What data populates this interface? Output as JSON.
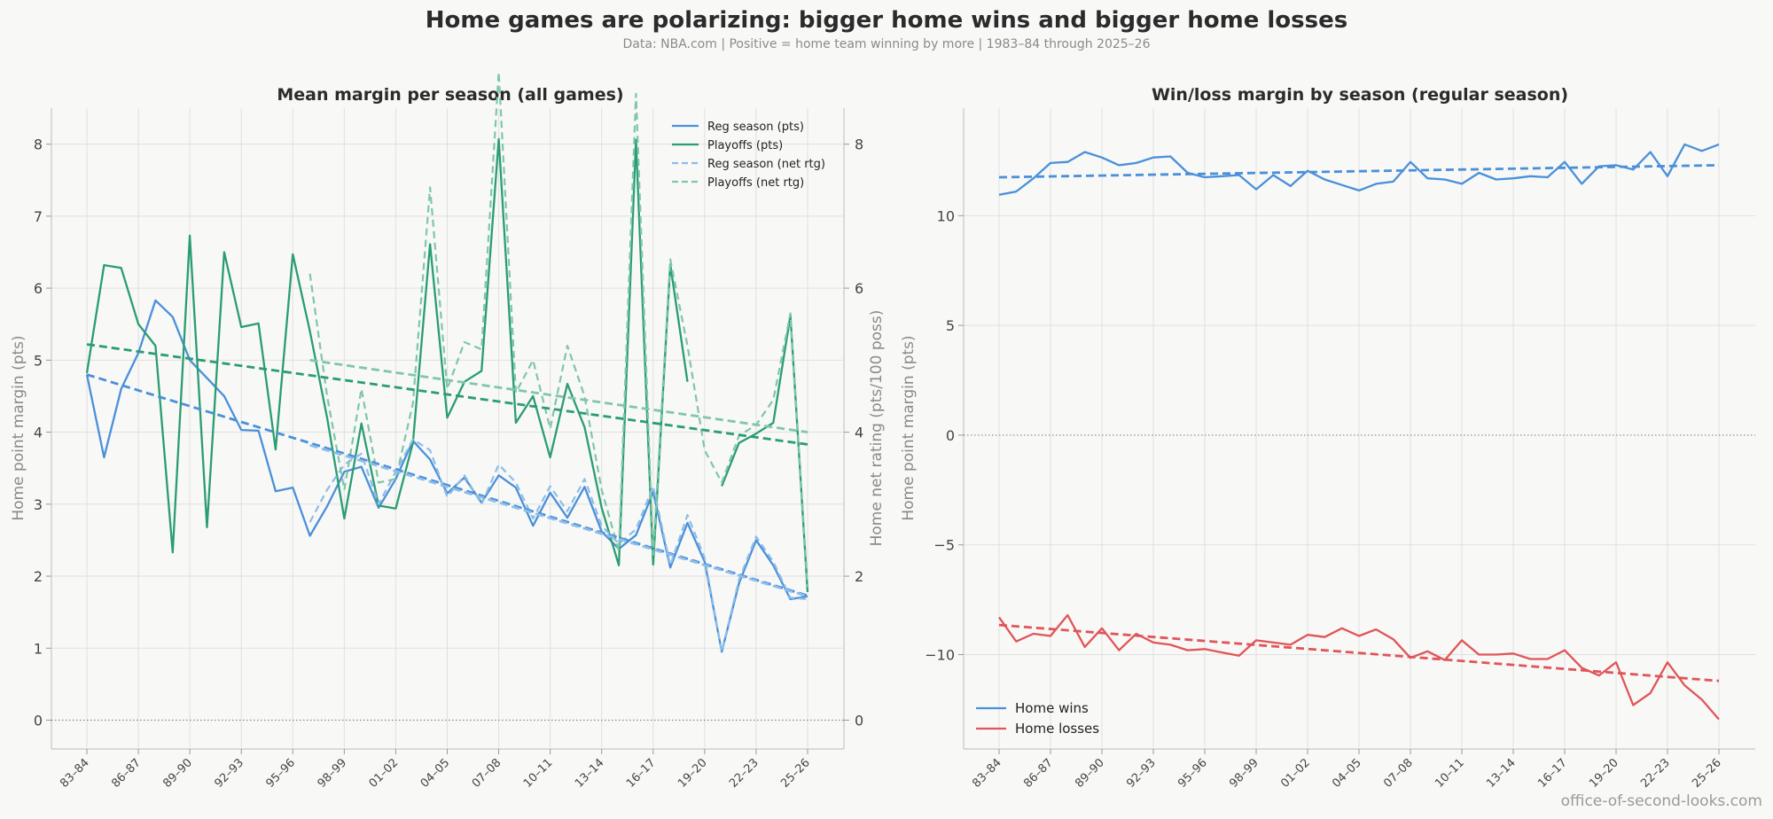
{
  "title": "Home games are polarizing: bigger home wins and bigger home losses",
  "subtitle": "Data: NBA.com  |  Positive = home team winning by more  |  1983–84 through 2025–26",
  "watermark": "office-of-second-looks.com",
  "colors": {
    "reg": "#4a90d9",
    "reg_rtg": "#8dbde8",
    "playoffs": "#2a9d72",
    "playoffs_rtg": "#7fc7a8",
    "wins": "#4a90d9",
    "losses": "#e05558",
    "grid": "#e0e0e0",
    "zero": "#888888"
  },
  "chart_data": [
    {
      "type": "line",
      "title": "Mean margin per season (all games)",
      "ylabel": "Home point margin (pts)",
      "y2label": "Home net rating (pts/100 poss)",
      "ylim": [
        -0.4,
        8.5
      ],
      "y2lim": [
        -0.4,
        8.5
      ],
      "yticks": [
        0,
        1,
        2,
        3,
        4,
        5,
        6,
        7,
        8
      ],
      "y2ticks": [
        0,
        2,
        4,
        6,
        8
      ],
      "xtick_labels": [
        "83–84",
        "86–87",
        "89–90",
        "92–93",
        "95–96",
        "98–99",
        "01–02",
        "04–05",
        "07–08",
        "10–11",
        "13–14",
        "16–17",
        "19–20",
        "22–23",
        "25–26"
      ],
      "seasons": [
        "83–84",
        "84–85",
        "85–86",
        "86–87",
        "87–88",
        "88–89",
        "89–90",
        "90–91",
        "91–92",
        "92–93",
        "93–94",
        "94–95",
        "95–96",
        "96–97",
        "97–98",
        "98–99",
        "99–00",
        "00–01",
        "01–02",
        "02–03",
        "03–04",
        "04–05",
        "05–06",
        "06–07",
        "07–08",
        "08–09",
        "09–10",
        "10–11",
        "11–12",
        "12–13",
        "13–14",
        "14–15",
        "15–16",
        "16–17",
        "17–18",
        "18–19",
        "19–20",
        "20–21",
        "21–22",
        "22–23",
        "23–24",
        "24–25",
        "25–26"
      ],
      "legend": [
        "Reg season (pts)",
        "Playoffs (pts)",
        "Reg season (net rtg)",
        "Playoffs (net rtg)"
      ],
      "legend_position": "top-right",
      "series": [
        {
          "name": "Reg season (pts)",
          "axis": "left",
          "style": "solid",
          "values": [
            4.8,
            3.65,
            4.6,
            5.1,
            5.83,
            5.6,
            5.0,
            4.75,
            4.5,
            4.03,
            4.02,
            3.18,
            3.23,
            2.56,
            2.97,
            3.45,
            3.52,
            2.95,
            3.35,
            3.88,
            3.62,
            3.15,
            3.37,
            3.02,
            3.4,
            3.23,
            2.7,
            3.16,
            2.81,
            3.24,
            2.62,
            2.38,
            2.57,
            3.17,
            2.12,
            2.74,
            2.2,
            0.95,
            1.9,
            2.5,
            2.15,
            1.68,
            1.72
          ]
        },
        {
          "name": "Playoffs (pts)",
          "axis": "left",
          "style": "solid",
          "values": [
            4.82,
            6.32,
            6.28,
            5.5,
            5.2,
            2.33,
            6.73,
            2.68,
            6.5,
            5.46,
            5.51,
            3.76,
            6.47,
            5.4,
            4.2,
            2.8,
            4.12,
            2.98,
            2.94,
            3.85,
            6.61,
            4.2,
            4.7,
            4.85,
            8.07,
            4.13,
            4.5,
            3.65,
            4.67,
            4.07,
            2.95,
            2.15,
            8.06,
            2.16,
            6.33,
            4.7,
            null,
            3.25,
            3.85,
            3.98,
            4.13,
            5.62,
            1.78
          ]
        },
        {
          "name": "Reg season (net rtg)",
          "axis": "right",
          "style": "dashed",
          "values": [
            null,
            null,
            null,
            null,
            null,
            null,
            null,
            null,
            null,
            null,
            null,
            null,
            null,
            2.75,
            3.2,
            3.55,
            3.7,
            3.0,
            3.45,
            3.9,
            3.75,
            3.1,
            3.4,
            3.0,
            3.55,
            3.3,
            2.8,
            3.25,
            2.9,
            3.35,
            2.7,
            2.45,
            2.65,
            3.25,
            2.15,
            2.85,
            2.25,
            0.95,
            1.95,
            2.55,
            2.2,
            1.7,
            1.68
          ]
        },
        {
          "name": "Playoffs (net rtg)",
          "axis": "right",
          "style": "dashed",
          "values": [
            null,
            null,
            null,
            null,
            null,
            null,
            null,
            null,
            null,
            null,
            null,
            null,
            null,
            6.2,
            4.5,
            3.2,
            4.6,
            3.3,
            3.35,
            4.4,
            7.4,
            4.6,
            5.25,
            5.15,
            9.0,
            4.55,
            5.0,
            4.05,
            5.2,
            4.5,
            3.2,
            2.35,
            8.7,
            2.3,
            6.4,
            5.2,
            3.75,
            3.3,
            3.95,
            4.1,
            4.45,
            5.65,
            1.85
          ]
        },
        {
          "name": "Reg season (pts) trend",
          "axis": "left",
          "style": "trend",
          "color_key": "reg",
          "values": [
            4.8,
            null,
            null,
            null,
            null,
            null,
            null,
            null,
            null,
            null,
            null,
            null,
            null,
            null,
            null,
            null,
            null,
            null,
            null,
            null,
            null,
            null,
            null,
            null,
            null,
            null,
            null,
            null,
            null,
            null,
            null,
            null,
            null,
            null,
            null,
            null,
            null,
            null,
            null,
            null,
            null,
            null,
            1.73
          ]
        },
        {
          "name": "Playoffs (pts) trend",
          "axis": "left",
          "style": "trend",
          "color_key": "playoffs",
          "values": [
            5.22,
            null,
            null,
            null,
            null,
            null,
            null,
            null,
            null,
            null,
            null,
            null,
            null,
            null,
            null,
            null,
            null,
            null,
            null,
            null,
            null,
            null,
            null,
            null,
            null,
            null,
            null,
            null,
            null,
            null,
            null,
            null,
            null,
            null,
            null,
            null,
            null,
            null,
            null,
            null,
            null,
            null,
            3.83
          ]
        },
        {
          "name": "Reg season (net rtg) trend",
          "axis": "right",
          "style": "trend",
          "color_key": "reg_rtg",
          "values": [
            null,
            null,
            null,
            null,
            null,
            null,
            null,
            null,
            null,
            null,
            null,
            null,
            null,
            3.82,
            null,
            null,
            null,
            null,
            null,
            null,
            null,
            null,
            null,
            null,
            null,
            null,
            null,
            null,
            null,
            null,
            null,
            null,
            null,
            null,
            null,
            null,
            null,
            null,
            null,
            null,
            null,
            null,
            1.72
          ]
        },
        {
          "name": "Playoffs (net rtg) trend",
          "axis": "right",
          "style": "trend",
          "color_key": "playoffs_rtg",
          "values": [
            null,
            null,
            null,
            null,
            null,
            null,
            null,
            null,
            null,
            null,
            null,
            null,
            null,
            5.0,
            null,
            null,
            null,
            null,
            null,
            null,
            null,
            null,
            null,
            null,
            null,
            null,
            null,
            null,
            null,
            null,
            null,
            null,
            null,
            null,
            null,
            null,
            null,
            null,
            null,
            null,
            null,
            null,
            4.0
          ]
        }
      ]
    },
    {
      "type": "line",
      "title": "Win/loss margin by season (regular season)",
      "ylabel": "Home point margin (pts)",
      "ylim": [
        -14.3,
        14.9
      ],
      "yticks": [
        -10,
        -5,
        0,
        5,
        10
      ],
      "ytick_labels": [
        "−10",
        "−5",
        "0",
        "5",
        "10"
      ],
      "xtick_labels": [
        "83–84",
        "86–87",
        "89–90",
        "92–93",
        "95–96",
        "98–99",
        "01–02",
        "04–05",
        "07–08",
        "10–11",
        "13–14",
        "16–17",
        "19–20",
        "22–23",
        "25–26"
      ],
      "legend": [
        "Home wins",
        "Home losses"
      ],
      "legend_position": "bottom-left",
      "series": [
        {
          "name": "Home wins",
          "values": [
            10.95,
            11.1,
            11.7,
            12.4,
            12.45,
            12.9,
            12.65,
            12.3,
            12.4,
            12.65,
            12.7,
            11.95,
            11.75,
            11.8,
            11.85,
            11.2,
            11.85,
            11.35,
            12.05,
            11.65,
            11.4,
            11.15,
            11.45,
            11.55,
            12.45,
            11.7,
            11.65,
            11.45,
            11.95,
            11.65,
            11.7,
            11.8,
            11.75,
            12.45,
            11.45,
            12.25,
            12.3,
            12.1,
            12.9,
            11.8,
            13.25,
            12.95,
            13.25
          ]
        },
        {
          "name": "Home losses",
          "values": [
            -8.3,
            -9.4,
            -9.05,
            -9.15,
            -8.2,
            -9.65,
            -8.8,
            -9.8,
            -9.05,
            -9.45,
            -9.55,
            -9.8,
            -9.75,
            -9.9,
            -10.05,
            -9.35,
            -9.45,
            -9.55,
            -9.1,
            -9.2,
            -8.8,
            -9.15,
            -8.85,
            -9.3,
            -10.15,
            -9.85,
            -10.25,
            -9.35,
            -10.0,
            -10.0,
            -9.95,
            -10.2,
            -10.2,
            -9.8,
            -10.6,
            -10.95,
            -10.35,
            -12.3,
            -11.75,
            -10.35,
            -11.4,
            -12.05,
            -12.95
          ]
        },
        {
          "name": "Home wins trend",
          "style": "trend",
          "values": [
            11.75,
            null,
            null,
            null,
            null,
            null,
            null,
            null,
            null,
            null,
            null,
            null,
            null,
            null,
            null,
            null,
            null,
            null,
            null,
            null,
            null,
            null,
            null,
            null,
            null,
            null,
            null,
            null,
            null,
            null,
            null,
            null,
            null,
            null,
            null,
            null,
            null,
            null,
            null,
            null,
            null,
            null,
            12.3
          ]
        },
        {
          "name": "Home losses trend",
          "style": "trend",
          "values": [
            -8.65,
            null,
            null,
            null,
            null,
            null,
            null,
            null,
            null,
            null,
            null,
            null,
            null,
            null,
            null,
            null,
            null,
            null,
            null,
            null,
            null,
            null,
            null,
            null,
            null,
            null,
            null,
            null,
            null,
            null,
            null,
            null,
            null,
            null,
            null,
            null,
            null,
            null,
            null,
            null,
            null,
            null,
            -11.2
          ]
        }
      ]
    }
  ]
}
